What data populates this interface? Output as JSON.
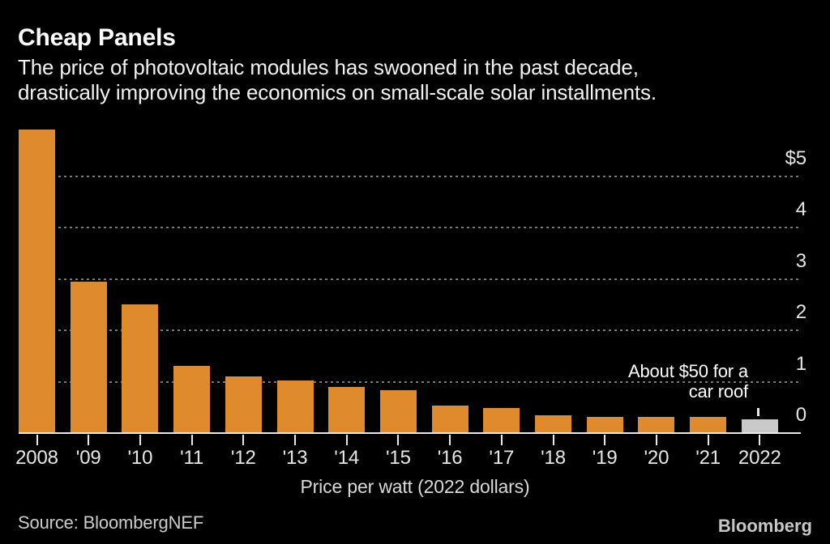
{
  "header": {
    "title": "Cheap Panels",
    "subtitle_line1": "The price of photovoltaic modules has swooned in the past decade,",
    "subtitle_line2": "drastically improving the economics on small-scale solar installments."
  },
  "chart_data": {
    "type": "bar",
    "title": "Cheap Panels",
    "categories": [
      "2008",
      "'09",
      "'10",
      "'11",
      "'12",
      "'13",
      "'14",
      "'15",
      "'16",
      "'17",
      "'18",
      "'19",
      "'20",
      "'21",
      "2022"
    ],
    "values": [
      5.9,
      2.95,
      2.5,
      1.3,
      1.1,
      1.03,
      0.9,
      0.84,
      0.53,
      0.49,
      0.35,
      0.31,
      0.31,
      0.31,
      0.26
    ],
    "highlight_index": 14,
    "xlabel": "Price per watt (2022 dollars)",
    "ylabel": "",
    "ylim": [
      0,
      6
    ],
    "y_ticks": [
      {
        "value": 5,
        "label": "$5"
      },
      {
        "value": 4,
        "label": "4"
      },
      {
        "value": 3,
        "label": "3"
      },
      {
        "value": 2,
        "label": "2"
      },
      {
        "value": 1,
        "label": "1"
      },
      {
        "value": 0,
        "label": "0"
      }
    ],
    "gridline_values": [
      1,
      2,
      3,
      4,
      5
    ],
    "grid": "dotted horizontal, labels on right",
    "legend": "none",
    "annotation": {
      "line1": "About $50 for a",
      "line2": "car roof",
      "points_to": "2022"
    }
  },
  "footer": {
    "source": "Source: BloombergNEF",
    "logo": "Bloomberg"
  },
  "colors": {
    "background": "#000000",
    "bar": "#df8b2d",
    "highlight_bar": "#c9c9c9",
    "gridline": "#787878",
    "axis_line": "#e8e8e8",
    "title_text": "#ffffff",
    "subtitle_text": "#f1f1f1",
    "label_text": "#e6e6e6",
    "caption_text": "#d9d9d9",
    "source_text": "#cccccc",
    "logo_text": "#c7c7c7"
  }
}
